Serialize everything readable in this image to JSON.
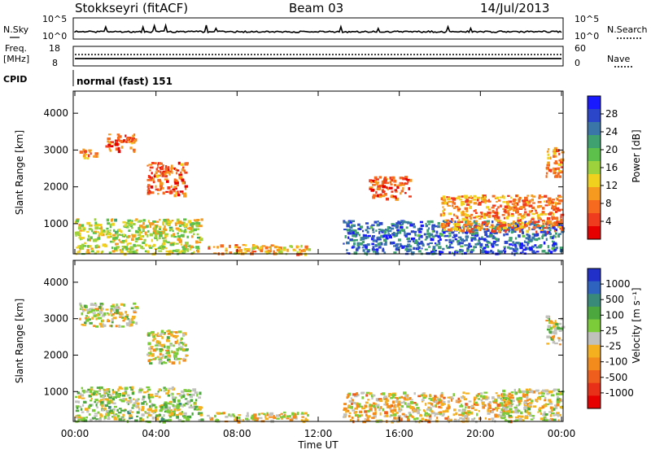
{
  "header": {
    "station": "Stokkseyri (fitACF)",
    "beam": "Beam 03",
    "date": "14/Jul/2013"
  },
  "noise_panel": {
    "left_label": "N.Sky",
    "left_ticks": [
      "10^5",
      "10^0"
    ],
    "right_label": "N.Search",
    "right_ticks": [
      "10^5",
      "10^0"
    ]
  },
  "freq_panel": {
    "left_label_1": "Freq.",
    "left_label_2": "[MHz]",
    "left_ticks": [
      "18",
      "8"
    ],
    "right_label": "Nave",
    "right_ticks": [
      "60",
      "0"
    ]
  },
  "cpid_panel": {
    "label": "CPID",
    "text": "normal (fast) 151"
  },
  "x_axis": {
    "label": "Time UT",
    "ticks": [
      "00:00",
      "04:00",
      "08:00",
      "12:00",
      "16:00",
      "20:00",
      "00:00"
    ]
  },
  "power_panel": {
    "ylabel": "Slant Range [km]",
    "yticks": [
      "4000",
      "3000",
      "2000",
      "1000"
    ],
    "colorbar_label": "Power [dB]",
    "colorbar_ticks": [
      "28",
      "24",
      "20",
      "16",
      "12",
      "8",
      "4"
    ],
    "colors": [
      "#1a1aff",
      "#2b46c8",
      "#3a77a8",
      "#3fa070",
      "#5cc04a",
      "#9ed23c",
      "#f0d21e",
      "#f59a1e",
      "#f56a1e",
      "#f03c1e",
      "#e60000"
    ]
  },
  "velocity_panel": {
    "ylabel": "Slant Range [km]",
    "yticks": [
      "4000",
      "3000",
      "2000",
      "1000"
    ],
    "colorbar_label": "Velocity [m s⁻¹]",
    "colorbar_ticks": [
      "1000",
      "500",
      "100",
      "25",
      "-25",
      "-100",
      "-500",
      "-1000"
    ],
    "colors": [
      "#2030c8",
      "#2e64c0",
      "#3a8a7a",
      "#4ca83e",
      "#7ccc3a",
      "#c0c0bc",
      "#f5b020",
      "#f28a1c",
      "#ef5e1c",
      "#e83018",
      "#e60000"
    ]
  },
  "chart_data": [
    {
      "type": "line",
      "title": "N.Sky / N.Search",
      "x_range": [
        "00:00",
        "24:00"
      ],
      "y_scale": "log",
      "ylim_left": [
        1,
        100000
      ],
      "ylim_right": [
        1,
        100000
      ]
    },
    {
      "type": "line",
      "title": "Freq. / Nave",
      "ylim_left": [
        8,
        18
      ],
      "ylim_right": [
        0,
        60
      ],
      "freq_mhz_approx": 10.5
    },
    {
      "type": "heatmap",
      "title": "Power [dB]",
      "x_range_hours": [
        0,
        24
      ],
      "y_range_km": [
        180,
        4600
      ],
      "color_range": [
        0,
        30
      ],
      "regions": [
        {
          "t0": 0.0,
          "t1": 6.2,
          "r0": 200,
          "r1": 1150,
          "value": 14
        },
        {
          "t0": 0.2,
          "t1": 1.0,
          "r0": 2800,
          "r1": 3100,
          "value": 8
        },
        {
          "t0": 1.5,
          "t1": 3.0,
          "r0": 3000,
          "r1": 3450,
          "value": 6
        },
        {
          "t0": 3.5,
          "t1": 5.5,
          "r0": 1800,
          "r1": 2700,
          "value": 6
        },
        {
          "t0": 6.5,
          "t1": 11.5,
          "r0": 200,
          "r1": 450,
          "value": 10
        },
        {
          "t0": 13.2,
          "t1": 24.0,
          "r0": 200,
          "r1": 1100,
          "value": 24
        },
        {
          "t0": 14.5,
          "t1": 16.5,
          "r0": 1700,
          "r1": 2300,
          "value": 6
        },
        {
          "t0": 18.0,
          "t1": 24.0,
          "r0": 800,
          "r1": 1800,
          "value": 8
        },
        {
          "t0": 23.2,
          "t1": 24.0,
          "r0": 2300,
          "r1": 3100,
          "value": 8
        }
      ]
    },
    {
      "type": "heatmap",
      "title": "Velocity [m s⁻¹]",
      "x_range_hours": [
        0,
        24
      ],
      "y_range_km": [
        180,
        4600
      ],
      "color_range": [
        -1000,
        1000
      ],
      "regions": [
        {
          "t0": 0.0,
          "t1": 6.2,
          "r0": 200,
          "r1": 1150,
          "value": 120
        },
        {
          "t0": 0.2,
          "t1": 3.0,
          "r0": 2800,
          "r1": 3450,
          "value": 0
        },
        {
          "t0": 3.5,
          "t1": 5.5,
          "r0": 1800,
          "r1": 2700,
          "value": 0
        },
        {
          "t0": 6.5,
          "t1": 11.5,
          "r0": 200,
          "r1": 450,
          "value": -80
        },
        {
          "t0": 13.2,
          "t1": 21.5,
          "r0": 200,
          "r1": 1000,
          "value": -150
        },
        {
          "t0": 21.0,
          "t1": 24.0,
          "r0": 200,
          "r1": 1100,
          "value": 0
        },
        {
          "t0": 23.2,
          "t1": 24.0,
          "r0": 2300,
          "r1": 3100,
          "value": 0
        }
      ]
    }
  ]
}
